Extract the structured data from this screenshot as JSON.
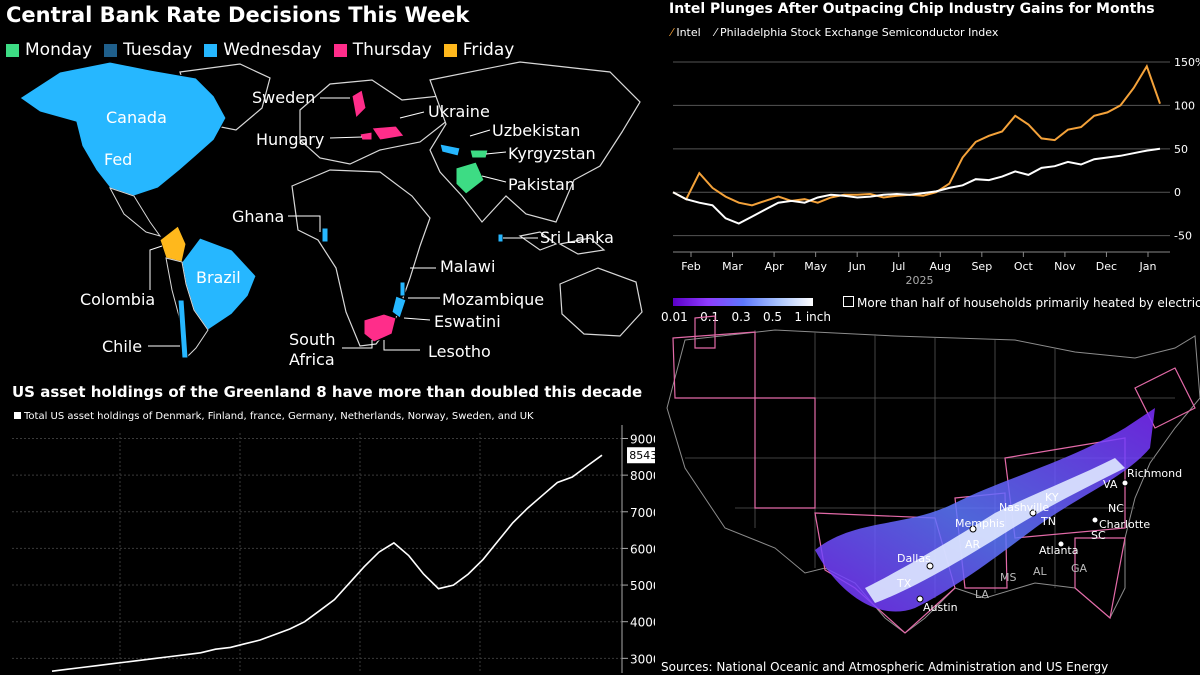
{
  "panels": {
    "rates": {
      "title": "Central Bank Rate Decisions This Week",
      "legend": [
        {
          "label": "Monday",
          "color": "#3ddc84"
        },
        {
          "label": "Tuesday",
          "color": "#1f5f8b"
        },
        {
          "label": "Wednesday",
          "color": "#26b7ff"
        },
        {
          "label": "Thursday",
          "color": "#ff2d8a"
        },
        {
          "label": "Friday",
          "color": "#ffb81c"
        }
      ],
      "countries": [
        "Canada",
        "Fed",
        "Sweden",
        "Ukraine",
        "Hungary",
        "Uzbekistan",
        "Kyrgyzstan",
        "Pakistan",
        "Ghana",
        "Sri Lanka",
        "Malawi",
        "Mozambique",
        "Eswatini",
        "Colombia",
        "Brazil",
        "Chile",
        "South Africa",
        "Lesotho"
      ]
    },
    "intel": {
      "title": "Intel Plunges After Outpacing Chip Industry Gains for Months",
      "legend": [
        {
          "label": "Intel",
          "color": "#f4a23a"
        },
        {
          "label": "Philadelphia Stock Exchange Semiconductor Index",
          "color": "#ffffff"
        }
      ]
    },
    "greenland": {
      "title": "US asset holdings of the Greenland 8 have more than doubled this decade",
      "legend_label": "Total US asset holdings of Denmark, Finland, france, Germany, Netherlands, Norway, Sweden, and UK",
      "last_value_label": "8543."
    },
    "snow": {
      "scale_labels": [
        "0.01",
        "0.1",
        "0.3",
        "0.5",
        "1 inch"
      ],
      "legend_label": "More than half of households primarily heated by electricity",
      "source": "Sources: National Oceanic and Atmospheric Administration and US Energy",
      "places": [
        "Richmond",
        "VA",
        "KY",
        "Nashville",
        "NC",
        "Charlotte",
        "Memphis",
        "TN",
        "SC",
        "AR",
        "Atlanta",
        "Dallas",
        "TX",
        "MS",
        "AL",
        "GA",
        "LA",
        "Austin"
      ]
    }
  },
  "chart_data": [
    {
      "type": "line",
      "title": "Intel Plunges After Outpacing Chip Industry Gains for Months",
      "x_ticks": [
        "Feb",
        "Mar",
        "Apr",
        "May",
        "Jun",
        "Jul",
        "Aug",
        "Sep",
        "Oct",
        "Nov",
        "Dec",
        "Jan"
      ],
      "x_sublabel": "2025",
      "y_ticks": [
        "150%",
        "100",
        "50",
        "0",
        "-50"
      ],
      "ylim": [
        -55,
        150
      ],
      "grid": true,
      "series": [
        {
          "name": "Intel",
          "color": "#f4a23a",
          "values": [
            0,
            -8,
            22,
            5,
            -5,
            -12,
            -15,
            -10,
            -5,
            -10,
            -8,
            -12,
            -6,
            -3,
            -3,
            -2,
            -6,
            -4,
            -3,
            -4,
            0,
            10,
            40,
            58,
            65,
            70,
            88,
            78,
            62,
            60,
            72,
            75,
            88,
            92,
            100,
            120,
            145,
            102
          ]
        },
        {
          "name": "Philadelphia Stock Exchange Semiconductor Index",
          "color": "#ffffff",
          "values": [
            0,
            -8,
            -12,
            -15,
            -30,
            -36,
            -28,
            -20,
            -12,
            -10,
            -12,
            -6,
            -3,
            -4,
            -6,
            -5,
            -3,
            -2,
            -3,
            -1,
            1,
            5,
            8,
            15,
            14,
            18,
            24,
            20,
            28,
            30,
            35,
            32,
            38,
            40,
            42,
            45,
            48,
            50
          ]
        }
      ]
    },
    {
      "type": "line",
      "title": "US asset holdings of the Greenland 8 have more than doubled this decade",
      "y_ticks": [
        "9000",
        "8000",
        "7000",
        "6000",
        "5000",
        "4000",
        "3000"
      ],
      "ylim": [
        2600,
        9150
      ],
      "grid": true,
      "series": [
        {
          "name": "Total US asset holdings of Denmark, Finland, france, Germany, Netherlands, Norway, Sweden, and UK",
          "color": "#ffffff",
          "values": [
            2650,
            2700,
            2750,
            2800,
            2850,
            2900,
            2950,
            3000,
            3050,
            3100,
            3150,
            3250,
            3300,
            3400,
            3500,
            3650,
            3800,
            4000,
            4300,
            4600,
            5050,
            5500,
            5900,
            6150,
            5800,
            5300,
            4900,
            5000,
            5300,
            5700,
            6200,
            6700,
            7100,
            7450,
            7800,
            7950,
            8250,
            8543
          ]
        }
      ],
      "last_value": 8543
    }
  ]
}
